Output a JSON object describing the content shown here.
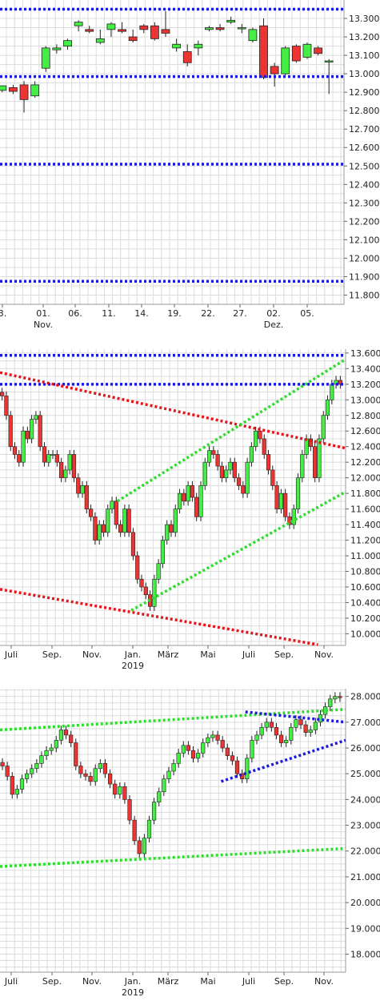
{
  "chart_data": [
    {
      "type": "candlestick",
      "panel": "top",
      "y_ticks": [
        "13.300",
        "13.200",
        "13.100",
        "13.000",
        "12.900",
        "12.800",
        "12.700",
        "12.600",
        "12.500",
        "12.400",
        "12.300",
        "12.200",
        "12.100",
        "12.000",
        "11.900",
        "11.800"
      ],
      "ylim": [
        11.75,
        13.4
      ],
      "x_ticks": [
        {
          "label": "3.",
          "sub": ""
        },
        {
          "label": "01.",
          "sub": "Nov."
        },
        {
          "label": "06.",
          "sub": ""
        },
        {
          "label": "11.",
          "sub": ""
        },
        {
          "label": "14.",
          "sub": ""
        },
        {
          "label": "19.",
          "sub": ""
        },
        {
          "label": "22.",
          "sub": ""
        },
        {
          "label": "27.",
          "sub": ""
        },
        {
          "label": "02.",
          "sub": "Dez."
        },
        {
          "label": "05.",
          "sub": ""
        }
      ],
      "horizontal_lines": [
        {
          "value": 13.35,
          "color": "#1a1adb"
        },
        {
          "value": 12.985,
          "color": "#1a1adb"
        },
        {
          "value": 12.51,
          "color": "#1a1adb"
        },
        {
          "value": 11.875,
          "color": "#1a1adb"
        }
      ],
      "candles": [
        [
          12.91,
          12.935,
          12.9,
          12.935
        ],
        [
          12.925,
          12.94,
          12.89,
          12.905
        ],
        [
          12.94,
          12.96,
          12.79,
          12.86
        ],
        [
          12.88,
          12.96,
          12.87,
          12.94
        ],
        [
          13.03,
          13.15,
          13.01,
          13.14
        ],
        [
          13.13,
          13.16,
          13.11,
          13.14
        ],
        [
          13.15,
          13.19,
          13.13,
          13.18
        ],
        [
          13.26,
          13.29,
          13.23,
          13.28
        ],
        [
          13.24,
          13.26,
          13.22,
          13.23
        ],
        [
          13.17,
          13.24,
          13.16,
          13.19
        ],
        [
          13.24,
          13.28,
          13.2,
          13.27
        ],
        [
          13.24,
          13.28,
          13.22,
          13.23
        ],
        [
          13.2,
          13.24,
          13.17,
          13.18
        ],
        [
          13.26,
          13.27,
          13.22,
          13.24
        ],
        [
          13.26,
          13.28,
          13.18,
          13.19
        ],
        [
          13.24,
          13.34,
          13.2,
          13.22
        ],
        [
          13.14,
          13.19,
          13.12,
          13.16
        ],
        [
          13.12,
          13.16,
          13.04,
          13.06
        ],
        [
          13.14,
          13.18,
          13.1,
          13.16
        ],
        [
          13.24,
          13.26,
          13.23,
          13.25
        ],
        [
          13.25,
          13.27,
          13.23,
          13.24
        ],
        [
          13.28,
          13.31,
          13.27,
          13.29
        ],
        [
          13.25,
          13.27,
          13.22,
          13.25
        ],
        [
          13.18,
          13.25,
          13.17,
          13.24
        ],
        [
          13.26,
          13.3,
          12.97,
          12.98
        ],
        [
          13.04,
          13.06,
          12.93,
          13.0
        ],
        [
          13.0,
          13.15,
          12.99,
          13.14
        ],
        [
          13.15,
          13.16,
          13.06,
          13.07
        ],
        [
          13.09,
          13.17,
          13.08,
          13.16
        ],
        [
          13.14,
          13.15,
          13.1,
          13.11
        ],
        [
          13.07,
          13.08,
          12.89,
          13.07
        ]
      ]
    },
    {
      "type": "candlestick",
      "panel": "middle",
      "y_ticks": [
        "13.600",
        "13.400",
        "13.200",
        "13.000",
        "12.800",
        "12.600",
        "12.400",
        "12.200",
        "12.000",
        "11.800",
        "11.600",
        "11.400",
        "11.200",
        "11.000",
        "10.800",
        "10.600",
        "10.400",
        "10.200",
        "10.000"
      ],
      "ylim": [
        9.85,
        13.65
      ],
      "x_ticks": [
        {
          "label": "Juli",
          "sub": ""
        },
        {
          "label": "Sep.",
          "sub": ""
        },
        {
          "label": "Nov.",
          "sub": ""
        },
        {
          "label": "Jan.",
          "sub": "2019"
        },
        {
          "label": "März",
          "sub": ""
        },
        {
          "label": "Mai",
          "sub": ""
        },
        {
          "label": "Juli",
          "sub": ""
        },
        {
          "label": "Sep.",
          "sub": ""
        },
        {
          "label": "Nov.",
          "sub": ""
        }
      ],
      "trend_lines": [
        {
          "color": "#1a1adb",
          "points": [
            [
              0,
              13.57
            ],
            [
              1,
              13.57
            ]
          ]
        },
        {
          "color": "#1a1adb",
          "points": [
            [
              0,
              13.2
            ],
            [
              1,
              13.2
            ]
          ]
        },
        {
          "color": "#e8141a",
          "points": [
            [
              0.0,
              13.35
            ],
            [
              1.0,
              12.38
            ]
          ]
        },
        {
          "color": "#e8141a",
          "points": [
            [
              0.0,
              10.57
            ],
            [
              0.92,
              9.86
            ]
          ]
        },
        {
          "color": "#2ddc2d",
          "points": [
            [
              0.34,
              11.7
            ],
            [
              1.0,
              13.52
            ]
          ]
        },
        {
          "color": "#2ddc2d",
          "points": [
            [
              0.38,
              10.3
            ],
            [
              1.0,
              11.82
            ]
          ]
        }
      ],
      "candles_closes": [
        13.05,
        12.8,
        12.4,
        12.3,
        12.2,
        12.6,
        12.5,
        12.75,
        12.8,
        12.4,
        12.2,
        12.3,
        12.3,
        12.2,
        12.0,
        12.1,
        12.3,
        12.0,
        11.8,
        11.9,
        11.6,
        11.5,
        11.2,
        11.4,
        11.3,
        11.6,
        11.7,
        11.4,
        11.3,
        11.6,
        11.3,
        11.0,
        10.7,
        10.6,
        10.5,
        10.35,
        10.7,
        10.9,
        11.2,
        11.4,
        11.3,
        11.6,
        11.8,
        11.7,
        11.9,
        11.75,
        11.5,
        11.9,
        12.2,
        12.35,
        12.3,
        12.15,
        12.0,
        12.1,
        12.2,
        12.0,
        11.9,
        11.8,
        12.2,
        12.4,
        12.6,
        12.5,
        12.3,
        12.1,
        11.9,
        11.6,
        11.8,
        11.5,
        11.4,
        11.6,
        12.0,
        12.3,
        12.5,
        12.4,
        12.0,
        12.5,
        12.8,
        13.0,
        13.2,
        13.25,
        13.2
      ]
    },
    {
      "type": "candlestick",
      "panel": "bottom",
      "y_ticks": [
        "28.000",
        "27.000",
        "26.000",
        "25.000",
        "24.000",
        "23.000",
        "22.000",
        "21.000",
        "20.000",
        "19.000",
        "18.000"
      ],
      "ylim": [
        17.3,
        28.3
      ],
      "x_ticks": [
        {
          "label": "Juli",
          "sub": ""
        },
        {
          "label": "Sep.",
          "sub": ""
        },
        {
          "label": "Nov.",
          "sub": ""
        },
        {
          "label": "Jan.",
          "sub": "2019"
        },
        {
          "label": "März",
          "sub": ""
        },
        {
          "label": "Mai",
          "sub": ""
        },
        {
          "label": "Juli",
          "sub": ""
        },
        {
          "label": "Sep.",
          "sub": ""
        },
        {
          "label": "Nov.",
          "sub": ""
        }
      ],
      "trend_lines": [
        {
          "color": "#2ddc2d",
          "points": [
            [
              0.0,
              26.7
            ],
            [
              1.0,
              27.5
            ]
          ]
        },
        {
          "color": "#2ddc2d",
          "points": [
            [
              0.0,
              21.4
            ],
            [
              1.0,
              22.1
            ]
          ]
        },
        {
          "color": "#1a1adb",
          "points": [
            [
              0.64,
              24.7
            ],
            [
              1.0,
              26.3
            ]
          ]
        },
        {
          "color": "#1a1adb",
          "points": [
            [
              0.71,
              27.4
            ],
            [
              1.0,
              27.0
            ]
          ]
        }
      ],
      "candles_closes": [
        25.3,
        24.9,
        24.2,
        24.4,
        24.8,
        25.0,
        25.2,
        25.4,
        25.7,
        25.9,
        26.0,
        26.3,
        26.7,
        26.5,
        26.2,
        25.3,
        25.0,
        24.9,
        24.7,
        25.2,
        25.4,
        25.0,
        24.6,
        24.2,
        24.5,
        24.0,
        23.2,
        22.4,
        21.9,
        22.5,
        23.2,
        23.9,
        24.3,
        24.8,
        25.1,
        25.4,
        25.8,
        26.1,
        25.9,
        25.6,
        25.8,
        26.2,
        26.4,
        26.5,
        26.3,
        26.0,
        25.7,
        25.5,
        25.0,
        24.8,
        25.6,
        26.3,
        26.5,
        26.8,
        27.0,
        26.8,
        26.5,
        26.2,
        26.3,
        26.8,
        27.1,
        26.9,
        26.6,
        26.7,
        27.0,
        27.3,
        27.6,
        27.9,
        28.0,
        27.95
      ]
    }
  ]
}
